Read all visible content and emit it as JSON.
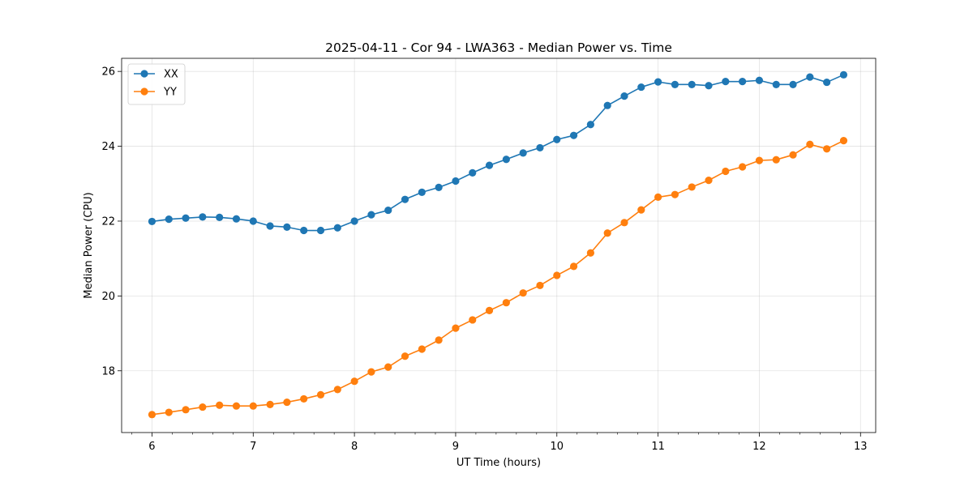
{
  "chart_data": {
    "type": "line",
    "title": "2025-04-11 - Cor 94 - LWA363 - Median Power vs. Time",
    "xlabel": "UT Time (hours)",
    "ylabel": "Median Power (CPU)",
    "xlim": [
      5.7,
      13.15
    ],
    "ylim": [
      16.35,
      26.35
    ],
    "xticks": [
      6,
      7,
      8,
      9,
      10,
      11,
      12,
      13
    ],
    "yticks": [
      18,
      20,
      22,
      24,
      26
    ],
    "grid": true,
    "legend_position": "top-left",
    "x": [
      6.0,
      6.1667,
      6.3333,
      6.5,
      6.6667,
      6.8333,
      7.0,
      7.1667,
      7.3333,
      7.5,
      7.6667,
      7.8333,
      8.0,
      8.1667,
      8.3333,
      8.5,
      8.6667,
      8.8333,
      9.0,
      9.1667,
      9.3333,
      9.5,
      9.6667,
      9.8333,
      10.0,
      10.1667,
      10.3333,
      10.5,
      10.6667,
      10.8333,
      11.0,
      11.1667,
      11.3333,
      11.5,
      11.6667,
      11.8333,
      12.0,
      12.1667,
      12.3333,
      12.5,
      12.6667,
      12.8333
    ],
    "series": [
      {
        "name": "XX",
        "color": "#1f77b4",
        "values": [
          21.99,
          22.05,
          22.08,
          22.11,
          22.1,
          22.06,
          22.0,
          21.87,
          21.84,
          21.75,
          21.75,
          21.82,
          22.0,
          22.17,
          22.29,
          22.58,
          22.77,
          22.9,
          23.07,
          23.29,
          23.49,
          23.65,
          23.82,
          23.96,
          24.18,
          24.29,
          24.58,
          25.09,
          25.34,
          25.58,
          25.72,
          25.65,
          25.65,
          25.62,
          25.73,
          25.73,
          25.76,
          25.65,
          25.65,
          25.85,
          25.71,
          25.91
        ]
      },
      {
        "name": "YY",
        "color": "#ff7f0e",
        "values": [
          16.83,
          16.89,
          16.96,
          17.03,
          17.08,
          17.06,
          17.06,
          17.1,
          17.16,
          17.25,
          17.36,
          17.5,
          17.72,
          17.97,
          18.1,
          18.39,
          18.58,
          18.82,
          19.14,
          19.36,
          19.61,
          19.82,
          20.08,
          20.28,
          20.55,
          20.79,
          21.15,
          21.68,
          21.96,
          22.3,
          22.64,
          22.71,
          22.91,
          23.09,
          23.33,
          23.45,
          23.62,
          23.64,
          23.77,
          24.05,
          23.93,
          24.15
        ]
      }
    ]
  }
}
